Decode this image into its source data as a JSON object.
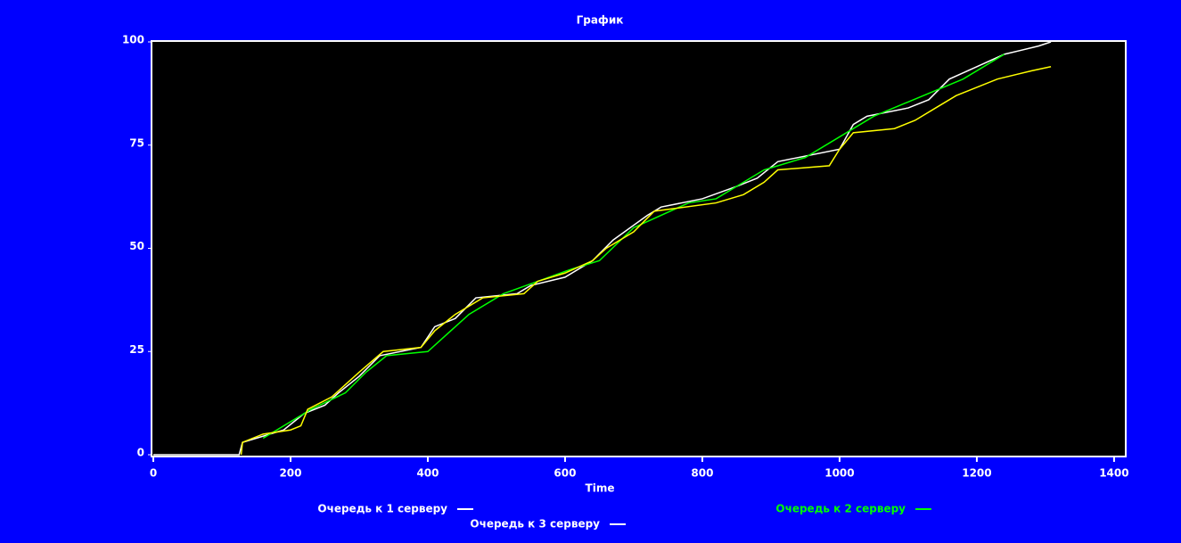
{
  "chart_data": {
    "type": "line",
    "title": "График",
    "x_label": "Time",
    "xlim": [
      0,
      1417
    ],
    "ylim": [
      0,
      100
    ],
    "xticks": [
      0,
      200,
      400,
      600,
      800,
      1000,
      1200,
      1400
    ],
    "yticks": [
      0,
      25,
      50,
      75,
      100
    ],
    "background": "#0000ff",
    "plot_background": "#000000",
    "series": [
      {
        "name": "Очередь к 1 серверу",
        "color": "#ffffff",
        "legend_color": "#ffffff",
        "x": [
          0,
          125,
          130,
          150,
          190,
          220,
          250,
          270,
          300,
          330,
          390,
          410,
          440,
          470,
          530,
          550,
          600,
          640,
          670,
          720,
          740,
          800,
          850,
          880,
          910,
          1000,
          1020,
          1040,
          1100,
          1130,
          1160,
          1200,
          1240,
          1290,
          1308
        ],
        "values": [
          0,
          0,
          3,
          4,
          6,
          10,
          12,
          15,
          19,
          24,
          26,
          31,
          33,
          38,
          39,
          41,
          43,
          47,
          52,
          58,
          60,
          62,
          65,
          67,
          71,
          74,
          80,
          82,
          84,
          86,
          91,
          94,
          97,
          99,
          100
        ]
      },
      {
        "name": "Очередь к 2 серверу",
        "color": "#00ff00",
        "legend_color": "#00ff00",
        "x": [
          160,
          230,
          280,
          310,
          340,
          400,
          460,
          510,
          560,
          610,
          650,
          700,
          780,
          820,
          890,
          950,
          1050,
          1180,
          1240
        ],
        "values": [
          4,
          11,
          15,
          20,
          24,
          25,
          34,
          39,
          42,
          45,
          47,
          55,
          61,
          62,
          69,
          72,
          82,
          91,
          97
        ]
      },
      {
        "name": "Очередь к 3 серверу",
        "color": "#ffff00",
        "legend_color": "#ffffff",
        "x": [
          128,
          130,
          160,
          200,
          215,
          225,
          260,
          280,
          300,
          335,
          390,
          410,
          440,
          480,
          540,
          560,
          600,
          640,
          660,
          700,
          730,
          820,
          860,
          890,
          910,
          985,
          1000,
          1020,
          1080,
          1110,
          1140,
          1170,
          1200,
          1230,
          1280,
          1308
        ],
        "values": [
          0,
          3,
          5,
          6,
          7,
          11,
          14,
          17,
          20,
          25,
          26,
          30,
          34,
          38,
          39,
          42,
          44,
          47,
          50,
          54,
          59,
          61,
          63,
          66,
          69,
          70,
          74,
          78,
          79,
          81,
          84,
          87,
          89,
          91,
          93,
          94
        ]
      }
    ]
  }
}
